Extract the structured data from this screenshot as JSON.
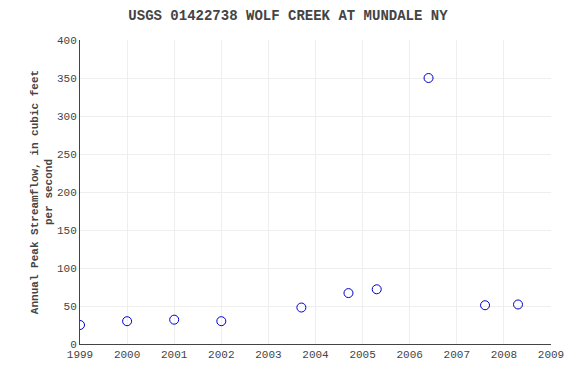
{
  "chart_data": {
    "type": "scatter",
    "title": "USGS 01422738 WOLF CREEK AT MUNDALE NY",
    "ylabel": "Annual Peak Streamflow, in cubic feet\nper second",
    "x": [
      1999,
      2000,
      2001,
      2002,
      2003.7,
      2004.7,
      2005.3,
      2006.4,
      2007.6,
      2008.3
    ],
    "values": [
      25,
      30,
      32,
      30,
      48,
      67,
      72,
      350,
      51,
      52
    ],
    "color": "#0000cc",
    "marker": "circle-open",
    "xlim": [
      1999,
      2009
    ],
    "ylim": [
      0,
      400
    ],
    "xticks": [
      1999,
      2000,
      2001,
      2002,
      2003,
      2004,
      2005,
      2006,
      2007,
      2008,
      2009
    ],
    "yticks": [
      0,
      50,
      100,
      150,
      200,
      250,
      300,
      350,
      400
    ],
    "grid": true
  }
}
